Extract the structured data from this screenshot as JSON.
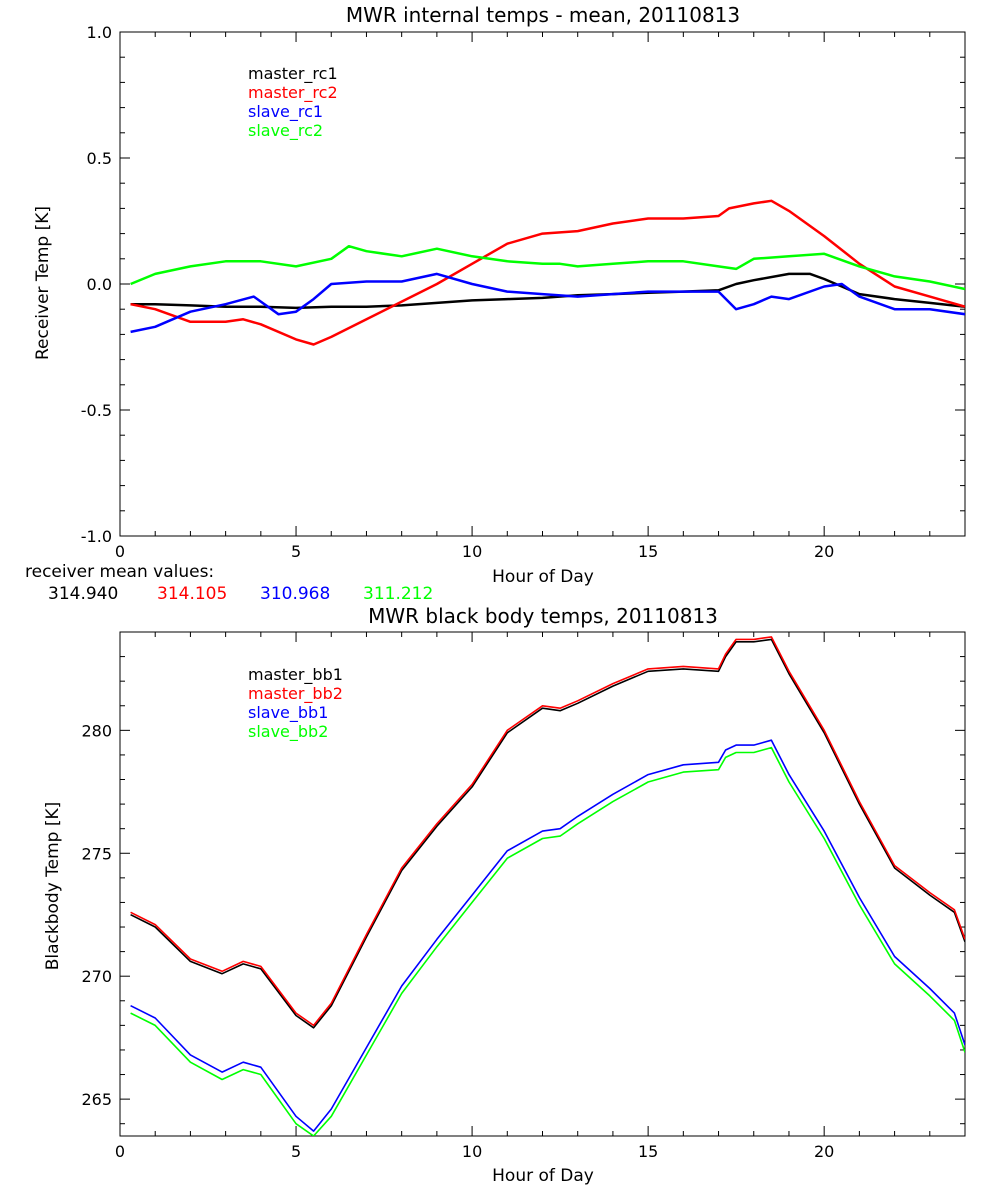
{
  "chart_data": [
    {
      "type": "line",
      "title": "MWR internal temps - mean, 20110813",
      "xlabel": "Hour of Day",
      "ylabel": "Receiver Temp [K]",
      "xlim": [
        0,
        24
      ],
      "ylim": [
        -1.0,
        1.0
      ],
      "xticks": [
        0,
        5,
        10,
        15,
        20
      ],
      "xtick_labels": [
        "0",
        "5",
        "10",
        "15",
        "20"
      ],
      "yticks": [
        -1.0,
        -0.5,
        0.0,
        0.5,
        1.0
      ],
      "ytick_labels": [
        "-1.0",
        "-0.5",
        "0.0",
        "0.5",
        "1.0"
      ],
      "grid": false,
      "legend_position": "top-left",
      "series": [
        {
          "name": "master_rc1",
          "color": "#000000",
          "points": [
            [
              0.3,
              -0.08
            ],
            [
              1,
              -0.08
            ],
            [
              2,
              -0.085
            ],
            [
              3,
              -0.09
            ],
            [
              4,
              -0.09
            ],
            [
              5,
              -0.095
            ],
            [
              6,
              -0.09
            ],
            [
              7,
              -0.09
            ],
            [
              8,
              -0.085
            ],
            [
              9,
              -0.075
            ],
            [
              10,
              -0.065
            ],
            [
              11,
              -0.06
            ],
            [
              12,
              -0.055
            ],
            [
              13,
              -0.045
            ],
            [
              14,
              -0.04
            ],
            [
              15,
              -0.035
            ],
            [
              16,
              -0.03
            ],
            [
              17,
              -0.025
            ],
            [
              17.5,
              0.0
            ],
            [
              18,
              0.015
            ],
            [
              19,
              0.04
            ],
            [
              19.6,
              0.04
            ],
            [
              20,
              0.02
            ],
            [
              20.5,
              -0.01
            ],
            [
              21,
              -0.04
            ],
            [
              22,
              -0.06
            ],
            [
              23,
              -0.075
            ],
            [
              24,
              -0.09
            ]
          ]
        },
        {
          "name": "master_rc2",
          "color": "#ff0000",
          "points": [
            [
              0.3,
              -0.08
            ],
            [
              1,
              -0.1
            ],
            [
              2,
              -0.15
            ],
            [
              3,
              -0.15
            ],
            [
              3.5,
              -0.14
            ],
            [
              4,
              -0.16
            ],
            [
              5,
              -0.22
            ],
            [
              5.5,
              -0.24
            ],
            [
              6,
              -0.21
            ],
            [
              7,
              -0.14
            ],
            [
              8,
              -0.07
            ],
            [
              9,
              0.0
            ],
            [
              10,
              0.08
            ],
            [
              11,
              0.16
            ],
            [
              12,
              0.2
            ],
            [
              13,
              0.21
            ],
            [
              14,
              0.24
            ],
            [
              15,
              0.26
            ],
            [
              16,
              0.26
            ],
            [
              17,
              0.27
            ],
            [
              17.3,
              0.3
            ],
            [
              18,
              0.32
            ],
            [
              18.5,
              0.33
            ],
            [
              19,
              0.29
            ],
            [
              20,
              0.19
            ],
            [
              21,
              0.08
            ],
            [
              22,
              -0.01
            ],
            [
              23,
              -0.05
            ],
            [
              24,
              -0.09
            ]
          ]
        },
        {
          "name": "slave_rc1",
          "color": "#0000ff",
          "points": [
            [
              0.3,
              -0.19
            ],
            [
              1,
              -0.17
            ],
            [
              2,
              -0.11
            ],
            [
              3,
              -0.08
            ],
            [
              3.8,
              -0.05
            ],
            [
              4.5,
              -0.12
            ],
            [
              5,
              -0.11
            ],
            [
              5.5,
              -0.06
            ],
            [
              6,
              0.0
            ],
            [
              7,
              0.01
            ],
            [
              8,
              0.01
            ],
            [
              9,
              0.04
            ],
            [
              10,
              0.0
            ],
            [
              11,
              -0.03
            ],
            [
              12,
              -0.04
            ],
            [
              13,
              -0.05
            ],
            [
              14,
              -0.04
            ],
            [
              15,
              -0.03
            ],
            [
              16,
              -0.03
            ],
            [
              17,
              -0.03
            ],
            [
              17.5,
              -0.1
            ],
            [
              18,
              -0.08
            ],
            [
              18.5,
              -0.05
            ],
            [
              19,
              -0.06
            ],
            [
              20,
              -0.01
            ],
            [
              20.5,
              0.0
            ],
            [
              21,
              -0.05
            ],
            [
              22,
              -0.1
            ],
            [
              23,
              -0.1
            ],
            [
              24,
              -0.12
            ]
          ]
        },
        {
          "name": "slave_rc2",
          "color": "#00ff00",
          "points": [
            [
              0.3,
              0.0
            ],
            [
              1,
              0.04
            ],
            [
              2,
              0.07
            ],
            [
              3,
              0.09
            ],
            [
              4,
              0.09
            ],
            [
              5,
              0.07
            ],
            [
              6,
              0.1
            ],
            [
              6.5,
              0.15
            ],
            [
              7,
              0.13
            ],
            [
              8,
              0.11
            ],
            [
              9,
              0.14
            ],
            [
              10,
              0.11
            ],
            [
              11,
              0.09
            ],
            [
              12,
              0.08
            ],
            [
              12.5,
              0.08
            ],
            [
              13,
              0.07
            ],
            [
              14,
              0.08
            ],
            [
              15,
              0.09
            ],
            [
              16,
              0.09
            ],
            [
              17,
              0.07
            ],
            [
              17.5,
              0.06
            ],
            [
              18,
              0.1
            ],
            [
              19,
              0.11
            ],
            [
              20,
              0.12
            ],
            [
              21,
              0.07
            ],
            [
              22,
              0.03
            ],
            [
              23,
              0.01
            ],
            [
              24,
              -0.02
            ]
          ]
        }
      ],
      "mean_values_label": "receiver mean values:",
      "mean_values": [
        {
          "text": "314.940",
          "color": "#000000"
        },
        {
          "text": "314.105",
          "color": "#ff0000"
        },
        {
          "text": "310.968",
          "color": "#0000ff"
        },
        {
          "text": "311.212",
          "color": "#00ff00"
        }
      ]
    },
    {
      "type": "line",
      "title": "MWR black body temps, 20110813",
      "xlabel": "Hour of Day",
      "ylabel": "Blackbody Temp [K]",
      "xlim": [
        0,
        24
      ],
      "ylim": [
        263.5,
        284
      ],
      "xticks": [
        0,
        5,
        10,
        15,
        20
      ],
      "xtick_labels": [
        "0",
        "5",
        "10",
        "15",
        "20"
      ],
      "yticks": [
        265,
        270,
        275,
        280
      ],
      "ytick_labels": [
        "265",
        "270",
        "275",
        "280"
      ],
      "grid": false,
      "legend_position": "top-left",
      "series": [
        {
          "name": "master_bb1",
          "color": "#000000",
          "points": [
            [
              0.3,
              272.5
            ],
            [
              1,
              272.0
            ],
            [
              2,
              270.6
            ],
            [
              2.9,
              270.1
            ],
            [
              3.5,
              270.5
            ],
            [
              4,
              270.3
            ],
            [
              5,
              268.4
            ],
            [
              5.5,
              267.9
            ],
            [
              6,
              268.8
            ],
            [
              7,
              271.6
            ],
            [
              8,
              274.3
            ],
            [
              9,
              276.1
            ],
            [
              10,
              277.7
            ],
            [
              11,
              279.9
            ],
            [
              12,
              280.9
            ],
            [
              12.5,
              280.8
            ],
            [
              13,
              281.1
            ],
            [
              14,
              281.8
            ],
            [
              15,
              282.4
            ],
            [
              16,
              282.5
            ],
            [
              17,
              282.4
            ],
            [
              17.2,
              283.0
            ],
            [
              17.5,
              283.6
            ],
            [
              18,
              283.6
            ],
            [
              18.5,
              283.7
            ],
            [
              19,
              282.3
            ],
            [
              20,
              279.9
            ],
            [
              21,
              277.0
            ],
            [
              22,
              274.4
            ],
            [
              23,
              273.3
            ],
            [
              23.7,
              272.6
            ],
            [
              24,
              271.4
            ]
          ]
        },
        {
          "name": "master_bb2",
          "color": "#ff0000",
          "points": [
            [
              0.3,
              272.6
            ],
            [
              1,
              272.1
            ],
            [
              2,
              270.7
            ],
            [
              2.9,
              270.2
            ],
            [
              3.5,
              270.6
            ],
            [
              4,
              270.4
            ],
            [
              5,
              268.5
            ],
            [
              5.5,
              268.0
            ],
            [
              6,
              268.9
            ],
            [
              7,
              271.7
            ],
            [
              8,
              274.4
            ],
            [
              9,
              276.2
            ],
            [
              10,
              277.8
            ],
            [
              11,
              280.0
            ],
            [
              12,
              281.0
            ],
            [
              12.5,
              280.9
            ],
            [
              13,
              281.2
            ],
            [
              14,
              281.9
            ],
            [
              15,
              282.5
            ],
            [
              16,
              282.6
            ],
            [
              17,
              282.5
            ],
            [
              17.2,
              283.1
            ],
            [
              17.5,
              283.7
            ],
            [
              18,
              283.7
            ],
            [
              18.5,
              283.8
            ],
            [
              19,
              282.4
            ],
            [
              20,
              280.0
            ],
            [
              21,
              277.1
            ],
            [
              22,
              274.5
            ],
            [
              23,
              273.4
            ],
            [
              23.7,
              272.7
            ],
            [
              24,
              271.5
            ]
          ]
        },
        {
          "name": "slave_bb1",
          "color": "#0000ff",
          "points": [
            [
              0.3,
              268.8
            ],
            [
              1,
              268.3
            ],
            [
              2,
              266.8
            ],
            [
              2.9,
              266.1
            ],
            [
              3.5,
              266.5
            ],
            [
              4,
              266.3
            ],
            [
              5,
              264.3
            ],
            [
              5.5,
              263.7
            ],
            [
              6,
              264.6
            ],
            [
              7,
              267.1
            ],
            [
              8,
              269.6
            ],
            [
              9,
              271.5
            ],
            [
              10,
              273.3
            ],
            [
              11,
              275.1
            ],
            [
              12,
              275.9
            ],
            [
              12.5,
              276.0
            ],
            [
              13,
              276.5
            ],
            [
              14,
              277.4
            ],
            [
              15,
              278.2
            ],
            [
              16,
              278.6
            ],
            [
              17,
              278.7
            ],
            [
              17.2,
              279.2
            ],
            [
              17.5,
              279.4
            ],
            [
              18,
              279.4
            ],
            [
              18.5,
              279.6
            ],
            [
              19,
              278.2
            ],
            [
              20,
              275.9
            ],
            [
              21,
              273.2
            ],
            [
              22,
              270.8
            ],
            [
              23,
              269.5
            ],
            [
              23.7,
              268.5
            ],
            [
              24,
              267.2
            ]
          ]
        },
        {
          "name": "slave_bb2",
          "color": "#00ff00",
          "points": [
            [
              0.3,
              268.5
            ],
            [
              1,
              268.0
            ],
            [
              2,
              266.5
            ],
            [
              2.9,
              265.8
            ],
            [
              3.5,
              266.2
            ],
            [
              4,
              266.0
            ],
            [
              5,
              264.0
            ],
            [
              5.5,
              263.5
            ],
            [
              6,
              264.3
            ],
            [
              7,
              266.8
            ],
            [
              8,
              269.3
            ],
            [
              9,
              271.2
            ],
            [
              10,
              273.0
            ],
            [
              11,
              274.8
            ],
            [
              12,
              275.6
            ],
            [
              12.5,
              275.7
            ],
            [
              13,
              276.2
            ],
            [
              14,
              277.1
            ],
            [
              15,
              277.9
            ],
            [
              16,
              278.3
            ],
            [
              17,
              278.4
            ],
            [
              17.2,
              278.9
            ],
            [
              17.5,
              279.1
            ],
            [
              18,
              279.1
            ],
            [
              18.5,
              279.3
            ],
            [
              19,
              277.9
            ],
            [
              20,
              275.6
            ],
            [
              21,
              272.9
            ],
            [
              22,
              270.5
            ],
            [
              23,
              269.2
            ],
            [
              23.7,
              268.2
            ],
            [
              24,
              266.9
            ]
          ]
        }
      ]
    }
  ]
}
